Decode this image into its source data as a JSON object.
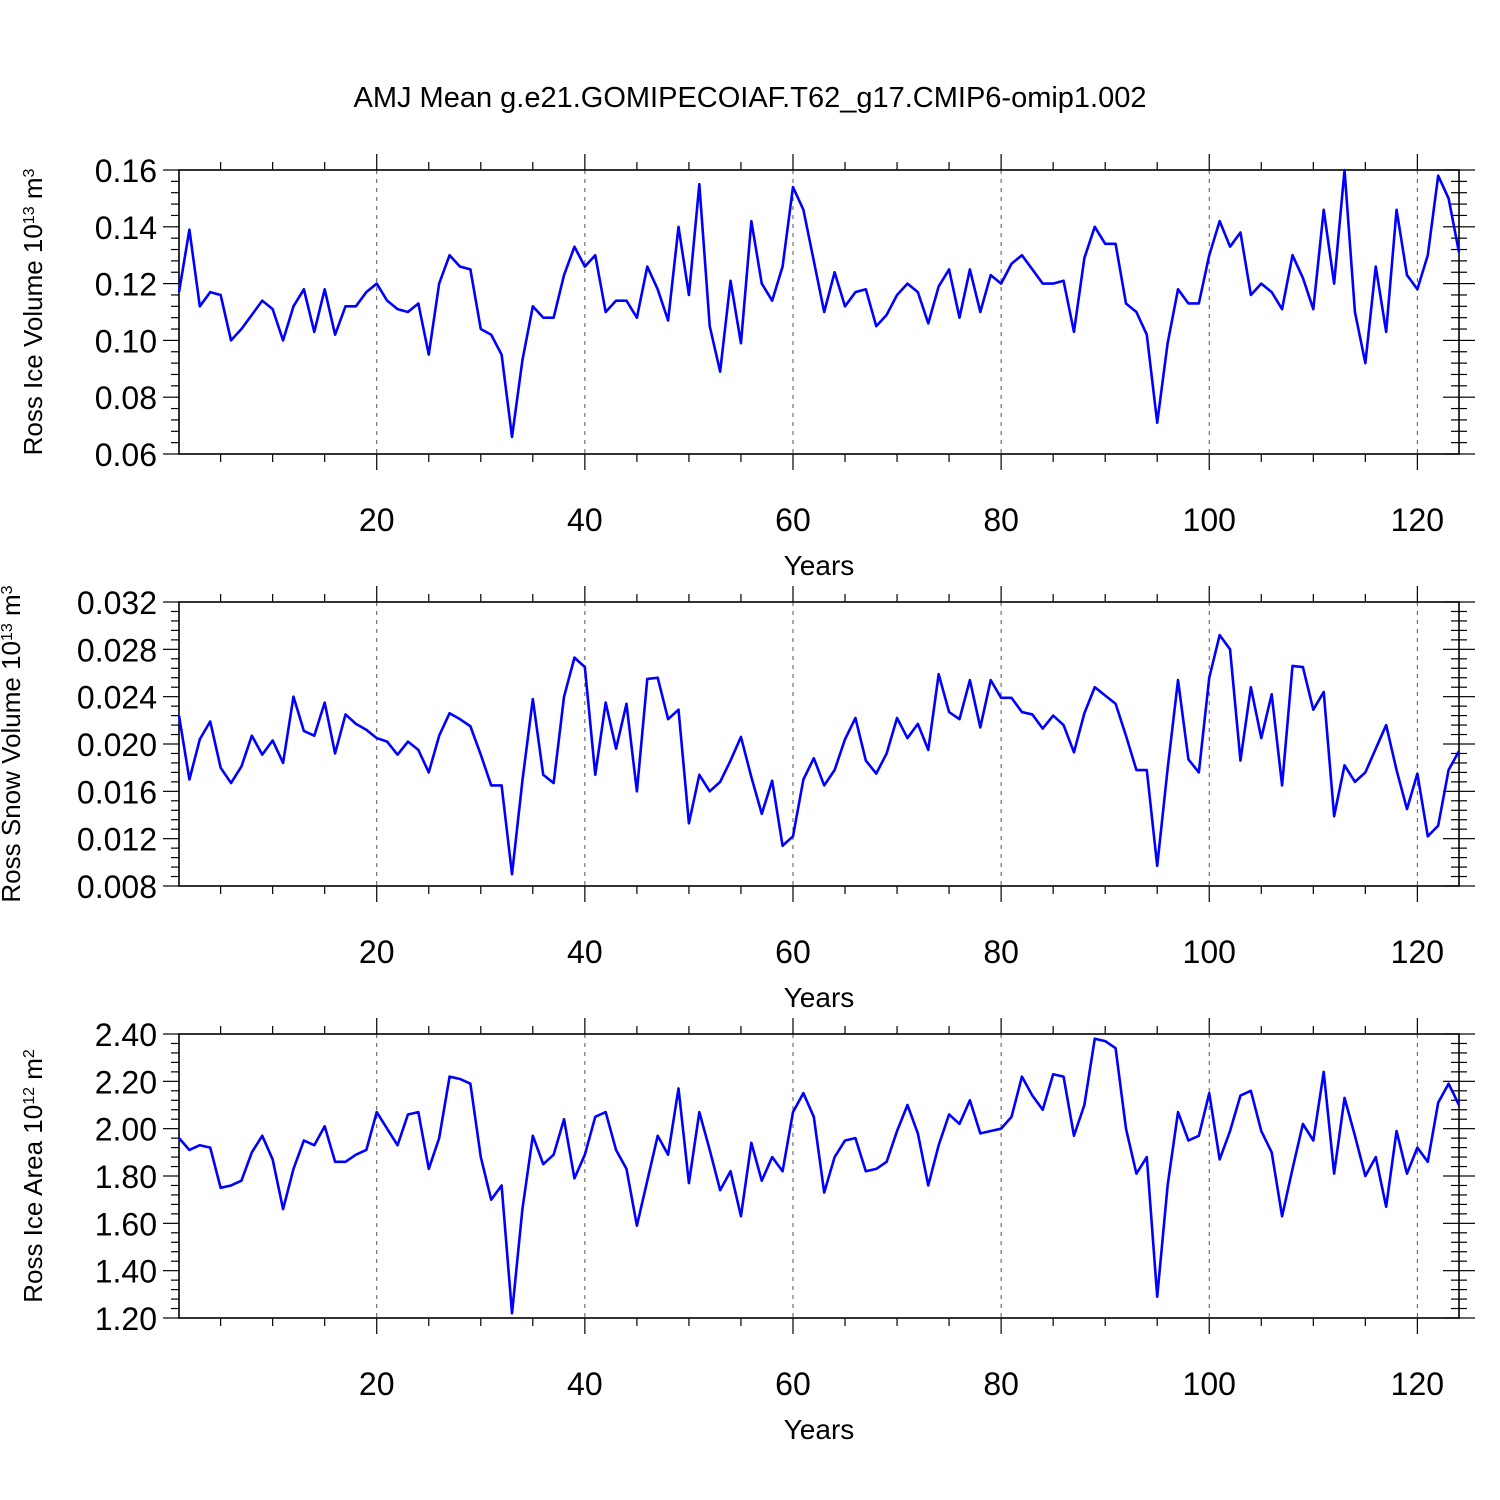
{
  "figure_title": "AMJ Mean g.e21.GOMIPECOIAF.T62_g17.CMIP6-omip1.002",
  "chart_data": [
    {
      "type": "line",
      "title": "AMJ Mean g.e21.GOMIPECOIAF.T62_g17.CMIP6-omip1.002",
      "xlabel": "Years",
      "ylabel_main": "Ross Ice Volume 10",
      "ylabel_exp": "13",
      "ylabel_unit": " m",
      "ylabel_unit_exp": "3",
      "xlim": [
        1,
        124
      ],
      "ylim": [
        0.06,
        0.16
      ],
      "x_ticks": [
        20,
        40,
        60,
        80,
        100,
        120
      ],
      "x_tick_labels": [
        "20",
        "40",
        "60",
        "80",
        "100",
        "120"
      ],
      "y_ticks": [
        0.06,
        0.08,
        0.1,
        0.12,
        0.14,
        0.16
      ],
      "y_tick_labels": [
        "0.06",
        "0.08",
        "0.10",
        "0.12",
        "0.14",
        "0.16"
      ],
      "grid": "dashed vertical at x ticks",
      "series": [
        {
          "name": "Ross Ice Volume",
          "color": "#0000ff",
          "values": [
            0.117,
            0.139,
            0.112,
            0.117,
            0.116,
            0.1,
            0.104,
            0.109,
            0.114,
            0.111,
            0.1,
            0.112,
            0.118,
            0.103,
            0.118,
            0.102,
            0.112,
            0.112,
            0.117,
            0.12,
            0.114,
            0.111,
            0.11,
            0.113,
            0.095,
            0.12,
            0.13,
            0.126,
            0.125,
            0.104,
            0.102,
            0.095,
            0.066,
            0.093,
            0.112,
            0.108,
            0.108,
            0.123,
            0.133,
            0.126,
            0.13,
            0.11,
            0.114,
            0.114,
            0.108,
            0.126,
            0.118,
            0.107,
            0.14,
            0.116,
            0.155,
            0.105,
            0.089,
            0.121,
            0.099,
            0.142,
            0.12,
            0.114,
            0.126,
            0.154,
            0.146,
            0.128,
            0.11,
            0.124,
            0.112,
            0.117,
            0.118,
            0.105,
            0.109,
            0.116,
            0.12,
            0.117,
            0.106,
            0.119,
            0.125,
            0.108,
            0.125,
            0.11,
            0.123,
            0.12,
            0.127,
            0.13,
            0.125,
            0.12,
            0.12,
            0.121,
            0.103,
            0.129,
            0.14,
            0.134,
            0.134,
            0.113,
            0.11,
            0.102,
            0.071,
            0.099,
            0.118,
            0.113,
            0.113,
            0.13,
            0.142,
            0.133,
            0.138,
            0.116,
            0.12,
            0.117,
            0.111,
            0.13,
            0.122,
            0.111,
            0.146,
            0.12,
            0.16,
            0.11,
            0.092,
            0.126,
            0.103,
            0.146,
            0.123,
            0.118,
            0.13,
            0.158,
            0.15,
            0.131
          ]
        }
      ]
    },
    {
      "type": "line",
      "xlabel": "Years",
      "ylabel_main": "Ross Snow Volume 10",
      "ylabel_exp": "13",
      "ylabel_unit": " m",
      "ylabel_unit_exp": "3",
      "xlim": [
        1,
        124
      ],
      "ylim": [
        0.008,
        0.032
      ],
      "x_ticks": [
        20,
        40,
        60,
        80,
        100,
        120
      ],
      "x_tick_labels": [
        "20",
        "40",
        "60",
        "80",
        "100",
        "120"
      ],
      "y_ticks": [
        0.008,
        0.012,
        0.016,
        0.02,
        0.024,
        0.028,
        0.032
      ],
      "y_tick_labels": [
        "0.008",
        "0.012",
        "0.016",
        "0.020",
        "0.024",
        "0.028",
        "0.032"
      ],
      "grid": "dashed vertical at x ticks",
      "series": [
        {
          "name": "Ross Snow Volume",
          "color": "#0000ff",
          "values": [
            0.0224,
            0.017,
            0.0204,
            0.0219,
            0.018,
            0.0167,
            0.0181,
            0.0207,
            0.0191,
            0.0203,
            0.0184,
            0.024,
            0.0211,
            0.0207,
            0.0235,
            0.0192,
            0.0225,
            0.0217,
            0.0212,
            0.0205,
            0.0202,
            0.0191,
            0.0202,
            0.0195,
            0.0176,
            0.0207,
            0.0226,
            0.0221,
            0.0215,
            0.0191,
            0.0165,
            0.0165,
            0.009,
            0.0169,
            0.0238,
            0.0174,
            0.0167,
            0.024,
            0.0273,
            0.0265,
            0.0174,
            0.0235,
            0.0196,
            0.0234,
            0.016,
            0.0255,
            0.0256,
            0.0221,
            0.0229,
            0.0133,
            0.0174,
            0.016,
            0.0168,
            0.0186,
            0.0206,
            0.0172,
            0.0141,
            0.0169,
            0.0114,
            0.0122,
            0.017,
            0.0188,
            0.0165,
            0.0178,
            0.0204,
            0.0222,
            0.0186,
            0.0175,
            0.0192,
            0.0222,
            0.0205,
            0.0217,
            0.0195,
            0.0259,
            0.0227,
            0.0221,
            0.0254,
            0.0214,
            0.0254,
            0.0239,
            0.0239,
            0.0227,
            0.0225,
            0.0213,
            0.0224,
            0.0216,
            0.0193,
            0.0226,
            0.0248,
            0.0241,
            0.0234,
            0.0207,
            0.0178,
            0.0178,
            0.0097,
            0.0179,
            0.0254,
            0.0187,
            0.0176,
            0.0256,
            0.0292,
            0.028,
            0.0186,
            0.0248,
            0.0205,
            0.0242,
            0.0165,
            0.0266,
            0.0265,
            0.0229,
            0.0244,
            0.0139,
            0.0182,
            0.0168,
            0.0176,
            0.0196,
            0.0216,
            0.0178,
            0.0145,
            0.0175,
            0.0122,
            0.0131,
            0.0178,
            0.0194
          ]
        }
      ]
    },
    {
      "type": "line",
      "xlabel": "Years",
      "ylabel_main": "Ross Ice Area 10",
      "ylabel_exp": "12",
      "ylabel_unit": " m",
      "ylabel_unit_exp": "2",
      "xlim": [
        1,
        124
      ],
      "ylim": [
        1.2,
        2.4
      ],
      "x_ticks": [
        20,
        40,
        60,
        80,
        100,
        120
      ],
      "x_tick_labels": [
        "20",
        "40",
        "60",
        "80",
        "100",
        "120"
      ],
      "y_ticks": [
        1.2,
        1.4,
        1.6,
        1.8,
        2.0,
        2.2,
        2.4
      ],
      "y_tick_labels": [
        "1.20",
        "1.40",
        "1.60",
        "1.80",
        "2.00",
        "2.20",
        "2.40"
      ],
      "grid": "dashed vertical at x ticks",
      "series": [
        {
          "name": "Ross Ice Area",
          "color": "#0000ff",
          "values": [
            1.96,
            1.91,
            1.93,
            1.92,
            1.75,
            1.76,
            1.78,
            1.9,
            1.97,
            1.87,
            1.66,
            1.83,
            1.95,
            1.93,
            2.01,
            1.86,
            1.86,
            1.89,
            1.91,
            2.07,
            2.0,
            1.93,
            2.06,
            2.07,
            1.83,
            1.96,
            2.22,
            2.21,
            2.19,
            1.88,
            1.7,
            1.76,
            1.22,
            1.66,
            1.97,
            1.85,
            1.89,
            2.04,
            1.79,
            1.89,
            2.05,
            2.07,
            1.91,
            1.83,
            1.59,
            1.78,
            1.97,
            1.89,
            2.17,
            1.77,
            2.07,
            1.91,
            1.74,
            1.82,
            1.63,
            1.94,
            1.78,
            1.88,
            1.82,
            2.07,
            2.15,
            2.05,
            1.73,
            1.88,
            1.95,
            1.96,
            1.82,
            1.83,
            1.86,
            1.99,
            2.1,
            1.98,
            1.76,
            1.93,
            2.06,
            2.02,
            2.12,
            1.98,
            1.99,
            2.0,
            2.05,
            2.22,
            2.14,
            2.08,
            2.23,
            2.22,
            1.97,
            2.1,
            2.38,
            2.37,
            2.34,
            2.0,
            1.81,
            1.88,
            1.29,
            1.76,
            2.07,
            1.95,
            1.97,
            2.15,
            1.87,
            1.99,
            2.14,
            2.16,
            1.99,
            1.9,
            1.63,
            1.83,
            2.02,
            1.95,
            2.24,
            1.81,
            2.13,
            1.97,
            1.8,
            1.88,
            1.67,
            1.99,
            1.81,
            1.92,
            1.86,
            2.11,
            2.19,
            2.1
          ]
        }
      ]
    }
  ]
}
